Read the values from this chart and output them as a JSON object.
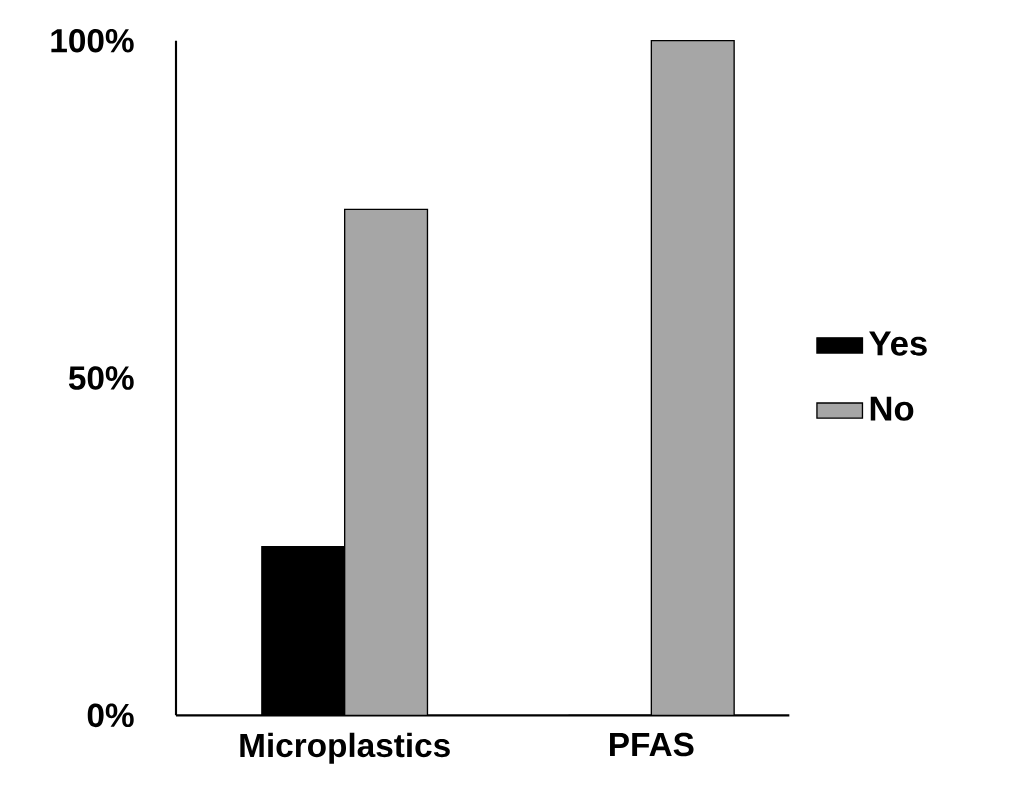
{
  "chart_data": {
    "type": "bar",
    "categories": [
      "Microplastics",
      "PFAS"
    ],
    "series": [
      {
        "name": "Yes",
        "color": "#000000",
        "values": [
          25,
          0
        ]
      },
      {
        "name": "No",
        "color": "#a6a6a6",
        "values": [
          75,
          100
        ]
      }
    ],
    "ylim": [
      0,
      100
    ],
    "yticks": [
      {
        "value": 0,
        "label": "0%"
      },
      {
        "value": 50,
        "label": "50%"
      },
      {
        "value": 100,
        "label": "100%"
      }
    ],
    "grid": false,
    "legend": "right"
  }
}
